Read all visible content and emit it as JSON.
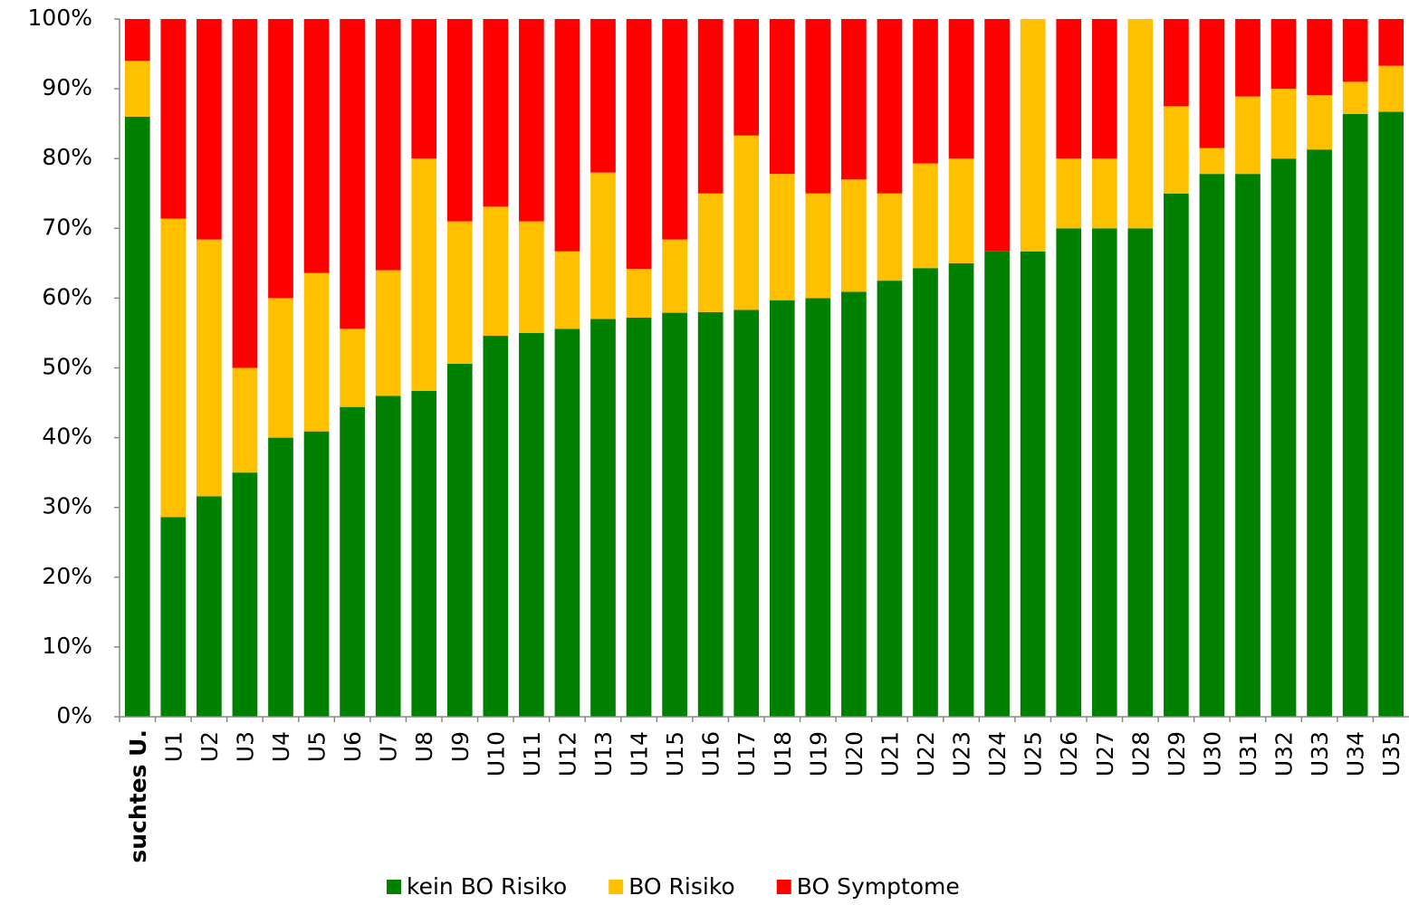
{
  "chart_data": {
    "type": "stacked_bar",
    "categories": [
      "suchtes U.",
      "U1",
      "U2",
      "U3",
      "U4",
      "U5",
      "U6",
      "U7",
      "U8",
      "U9",
      "U10",
      "U11",
      "U12",
      "U13",
      "U14",
      "U15",
      "U16",
      "U17",
      "U18",
      "U19",
      "U20",
      "U21",
      "U22",
      "U23",
      "U24",
      "U25",
      "U26",
      "U27",
      "U28",
      "U29",
      "U30",
      "U31",
      "U32",
      "U33",
      "U34",
      "U35"
    ],
    "series": [
      {
        "name": "kein BO Risiko",
        "color": "#008000",
        "values": [
          86,
          28.6,
          31.6,
          35,
          40,
          40.9,
          44.4,
          46,
          46.7,
          50.6,
          54.6,
          55,
          55.6,
          57,
          57.2,
          57.9,
          58,
          58.3,
          59.7,
          60,
          60.9,
          62.5,
          64.3,
          65,
          66.7,
          66.7,
          70,
          70,
          70,
          75,
          77.8,
          77.8,
          80,
          81.3,
          86.4,
          86.7
        ]
      },
      {
        "name": "BO Risiko",
        "color": "#ffc000",
        "values": [
          8,
          42.8,
          36.8,
          15,
          20,
          22.7,
          11.2,
          18,
          33.3,
          20.4,
          18.5,
          16,
          11.1,
          21,
          7,
          10.5,
          17,
          25,
          18.1,
          15,
          16.1,
          12.5,
          15,
          15,
          0,
          33.3,
          10,
          10,
          30,
          12.5,
          3.7,
          11.1,
          10,
          7.8,
          4.6,
          6.6
        ]
      },
      {
        "name": "BO Symptome",
        "color": "#ff0000",
        "values": [
          6,
          28.6,
          31.6,
          50,
          40,
          36.4,
          44.4,
          36,
          20,
          29,
          26.9,
          29,
          33.3,
          22,
          35.8,
          31.6,
          25,
          16.7,
          22.2,
          25,
          23,
          25,
          20.7,
          20,
          33.3,
          0,
          20,
          20,
          0,
          12.5,
          18.5,
          11.1,
          10,
          10.9,
          9,
          6.7
        ]
      }
    ],
    "ylim": [
      0,
      100
    ],
    "yticks": [
      {
        "value": 0,
        "label": "0%"
      },
      {
        "value": 10,
        "label": "10%"
      },
      {
        "value": 20,
        "label": "20%"
      },
      {
        "value": 30,
        "label": "30%"
      },
      {
        "value": 40,
        "label": "40%"
      },
      {
        "value": 50,
        "label": "50%"
      },
      {
        "value": 60,
        "label": "60%"
      },
      {
        "value": 70,
        "label": "70%"
      },
      {
        "value": 80,
        "label": "80%"
      },
      {
        "value": 90,
        "label": "90%"
      },
      {
        "value": 100,
        "label": "100%"
      }
    ],
    "legend": "bottom"
  }
}
